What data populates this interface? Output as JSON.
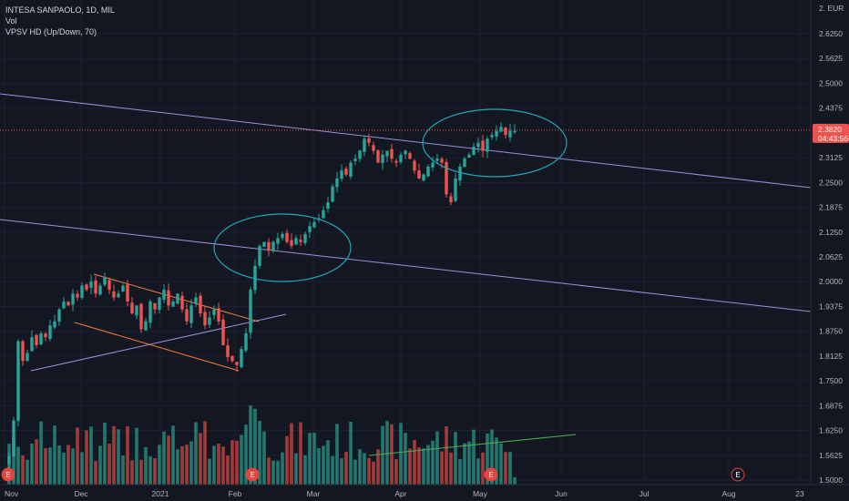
{
  "legend": {
    "symbol_line": "INTESA SANPAOLO, 1D, MIL",
    "vol_label": "Vol",
    "vpsv_label": "VPSV HD (Up/Down, 70)"
  },
  "currency_label": "2. EUR",
  "last_price": {
    "value": "2.3820",
    "countdown": "04:43:56",
    "color": "#ef5350"
  },
  "colors": {
    "up": "#26a69a",
    "down": "#ef5350",
    "vol_up": "#22786f",
    "vol_down": "#a23a3a",
    "background": "#131722",
    "ellipse": "#22a6b3",
    "trendline": "#9c8fd6",
    "channel": "#f57c3a",
    "event_circle": "#e0453e"
  },
  "event_icon_letter": "E",
  "chart_data": {
    "type": "candlestick",
    "title": "INTESA SANPAOLO, 1D, MIL",
    "y_ticks": [
      "2.6250",
      "2.5625",
      "2.5000",
      "2.4375",
      "2.3125",
      "2.2500",
      "2.1875",
      "2.1250",
      "2.0625",
      "2.0000",
      "1.9375",
      "1.8750",
      "1.8125",
      "1.7500",
      "1.6875",
      "1.6250",
      "1.5625",
      "1.5000"
    ],
    "x_ticks": [
      "Nov",
      "Dec",
      "2021",
      "Feb",
      "Mar",
      "Apr",
      "May",
      "Jun",
      "Jul",
      "Aug",
      "23"
    ],
    "ylim": [
      1.5,
      2.65
    ],
    "scale": "linear",
    "grid": true,
    "close_series_approx": [
      1.56,
      1.65,
      1.85,
      1.8,
      1.82,
      1.86,
      1.84,
      1.87,
      1.86,
      1.89,
      1.9,
      1.93,
      1.95,
      1.94,
      1.97,
      1.96,
      1.99,
      1.98,
      2.0,
      1.97,
      1.99,
      2.01,
      1.98,
      1.96,
      1.97,
      1.99,
      1.95,
      1.92,
      1.94,
      1.88,
      1.9,
      1.95,
      1.93,
      1.96,
      1.98,
      1.94,
      1.95,
      1.97,
      1.93,
      1.9,
      1.94,
      1.96,
      1.92,
      1.89,
      1.91,
      1.93,
      1.9,
      1.84,
      1.81,
      1.8,
      1.79,
      1.83,
      1.87,
      1.98,
      2.04,
      2.09,
      2.1,
      2.08,
      2.1,
      2.11,
      2.12,
      2.1,
      2.09,
      2.11,
      2.1,
      2.12,
      2.14,
      2.15,
      2.16,
      2.18,
      2.2,
      2.24,
      2.26,
      2.28,
      2.27,
      2.3,
      2.31,
      2.33,
      2.36,
      2.35,
      2.33,
      2.3,
      2.32,
      2.33,
      2.31,
      2.3,
      2.32,
      2.33,
      2.31,
      2.28,
      2.26,
      2.27,
      2.29,
      2.3,
      2.31,
      2.3,
      2.22,
      2.2,
      2.26,
      2.29,
      2.31,
      2.32,
      2.34,
      2.35,
      2.33,
      2.36,
      2.37,
      2.38,
      2.39,
      2.37,
      2.38,
      2.38
    ],
    "last_value": 2.382
  }
}
